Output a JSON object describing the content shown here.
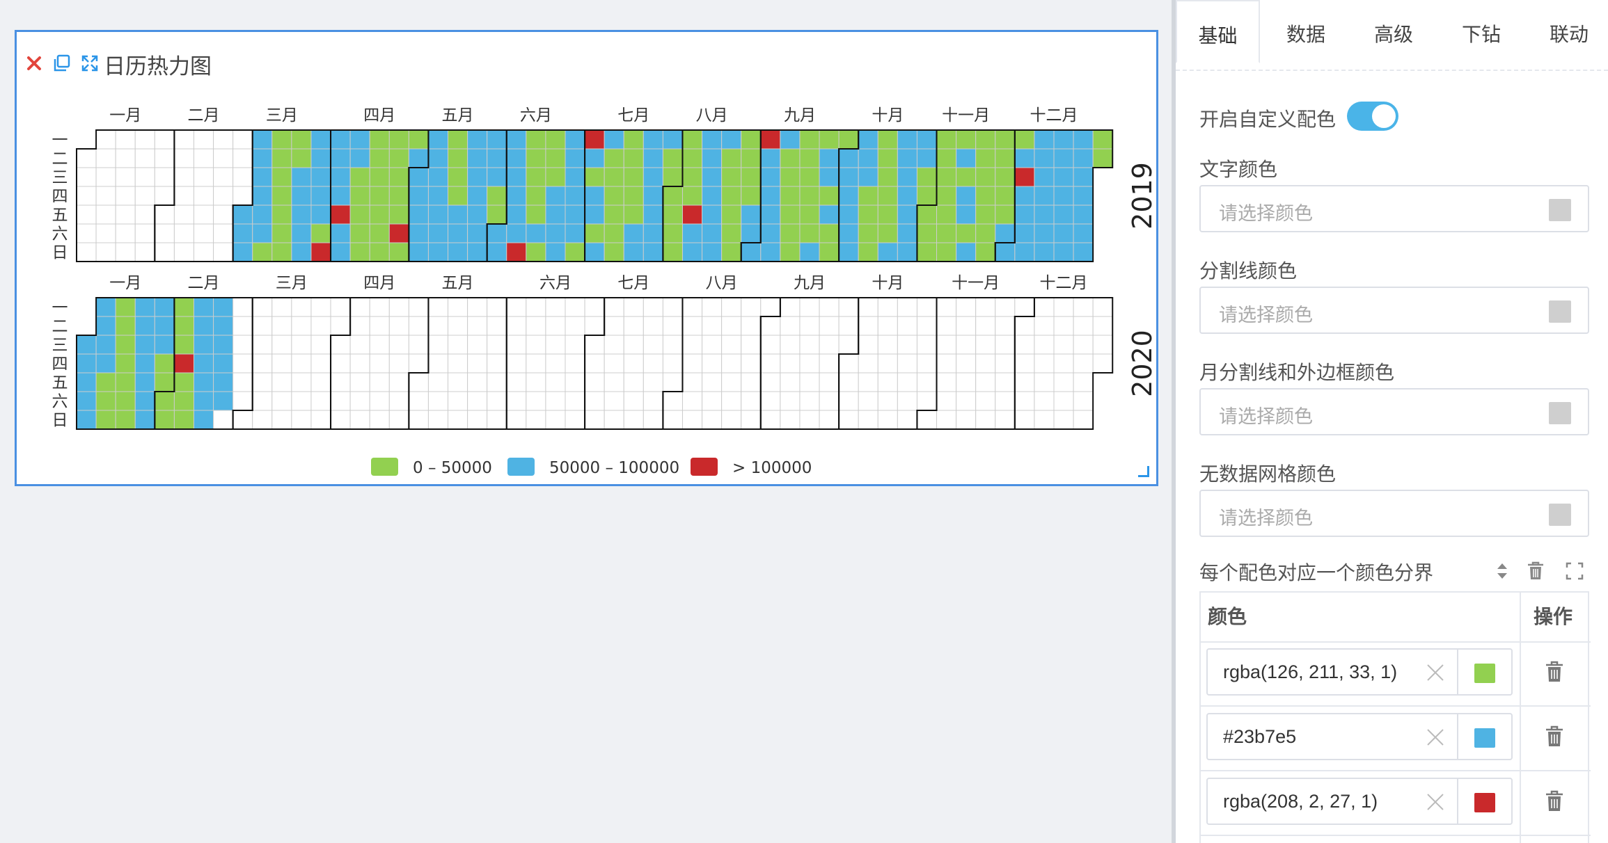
{
  "widget": {
    "title": "日历热力图"
  },
  "tools": {
    "close": "close-icon",
    "copy": "copy-icon",
    "expand": "expand-icon"
  },
  "chart_data": {
    "type": "heatmap",
    "title": "日历热力图",
    "calendar": "weekly calendar heatmap, one row per year, columns are weeks, rows are weekdays Monday to Sunday",
    "years": [
      "2019",
      "2020"
    ],
    "month_labels": [
      "一月",
      "二月",
      "三月",
      "四月",
      "五月",
      "六月",
      "七月",
      "八月",
      "九月",
      "十月",
      "十一月",
      "十二月"
    ],
    "weekday_labels": [
      "一",
      "二",
      "三",
      "四",
      "五",
      "六",
      "日"
    ],
    "pieces": [
      {
        "label": "0 – 50000",
        "min": 0,
        "max": 50000,
        "color": "#92d050"
      },
      {
        "label": "50000 – 100000",
        "min": 50000,
        "max": 100000,
        "color": "#4fb3e3"
      },
      {
        "label": "> 100000",
        "min": 100000,
        "color": "#c9292b"
      }
    ],
    "data_range": {
      "2019": [
        "2019-03-01",
        "2019-12-31"
      ],
      "2020": [
        "2020-01-01",
        "2020-02-22"
      ]
    },
    "high_days": [
      "2019-03-31",
      "2019-04-05",
      "2019-04-27",
      "2019-06-09",
      "2019-07-01",
      "2019-08-09",
      "2019-09-02",
      "2019-12-04",
      "2020-02-06"
    ],
    "legend_position": "bottom-center"
  },
  "panel": {
    "tabs": [
      "基础",
      "数据",
      "高级",
      "下钻",
      "联动"
    ],
    "active_tab": "基础",
    "custom_color_label": "开启自定义配色",
    "custom_color_on": true,
    "fields": [
      {
        "label": "文字颜色",
        "placeholder": "请选择颜色"
      },
      {
        "label": "分割线颜色",
        "placeholder": "请选择颜色"
      },
      {
        "label": "月分割线和外边框颜色",
        "placeholder": "请选择颜色"
      },
      {
        "label": "无数据网格颜色",
        "placeholder": "请选择颜色"
      }
    ],
    "segment_label": "每个配色对应一个颜色分界",
    "table_headers": {
      "color": "颜色",
      "action": "操作"
    },
    "colors": [
      {
        "value": "rgba(126, 211, 33, 1)",
        "swatch": "#92d050"
      },
      {
        "value": "#23b7e5",
        "swatch": "#4fb3e3"
      },
      {
        "value": "rgba(208, 2, 27, 1)",
        "swatch": "#c9292b"
      }
    ]
  }
}
